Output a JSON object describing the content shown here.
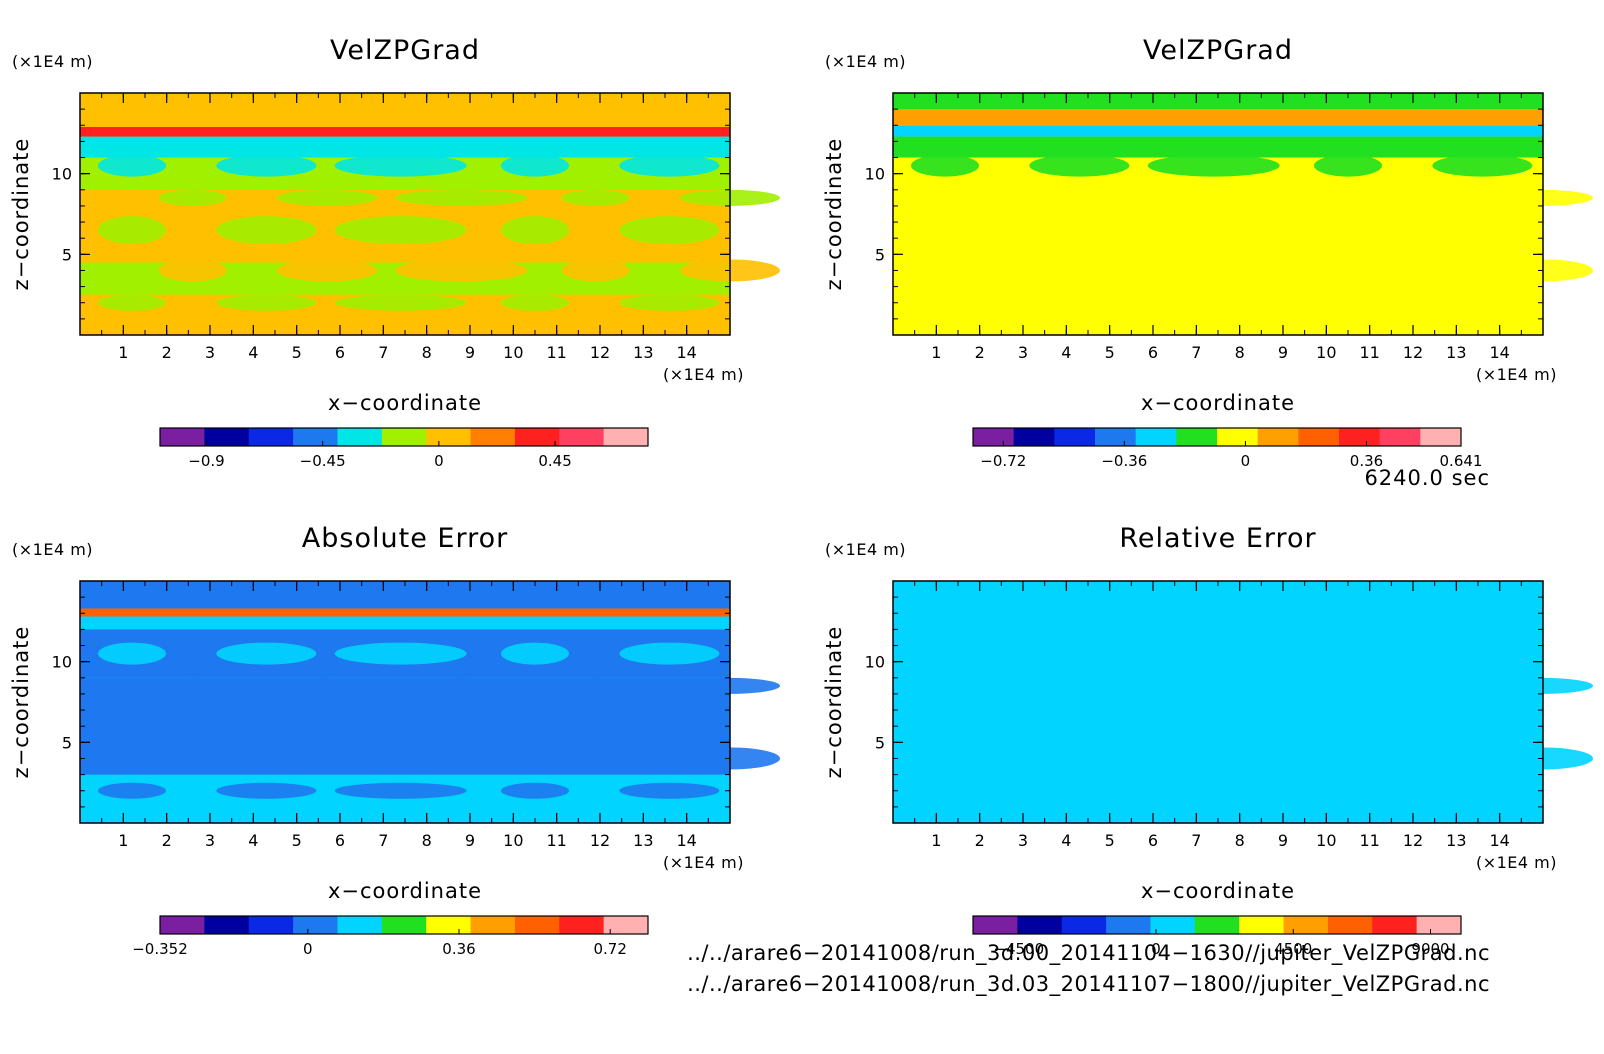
{
  "chart_data": [
    {
      "type": "heatmap",
      "title": "VelZPGrad",
      "xlabel": "x−coordinate",
      "ylabel": "z−coordinate",
      "x_unit": "(×1E4 m)",
      "y_unit": "(×1E4 m)",
      "xlim": [
        0,
        15
      ],
      "ylim": [
        0,
        15
      ],
      "x_ticks": [
        "1",
        "2",
        "3",
        "4",
        "5",
        "6",
        "7",
        "8",
        "9",
        "10",
        "11",
        "12",
        "13",
        "14"
      ],
      "y_ticks": [
        "5",
        "10"
      ],
      "colorbar": {
        "range": [
          -1.08,
          0.81
        ],
        "tick_values": [
          -0.9,
          -0.45,
          0,
          0.45
        ],
        "tick_labels": [
          "−0.9",
          "−0.45",
          "0",
          "0.45"
        ],
        "colors": [
          "#7a1fa0",
          "#0000a0",
          "#0a28e6",
          "#1e78f0",
          "#00e6e6",
          "#a0f000",
          "#ffc000",
          "#ff8000",
          "#ff2020",
          "#ff4060",
          "#ffb0b0"
        ]
      },
      "bands": [
        {
          "z_from": 0,
          "z_to": 2.5,
          "value": 0.05
        },
        {
          "z_from": 2.5,
          "z_to": 4.5,
          "value": -0.05
        },
        {
          "z_from": 4.5,
          "z_to": 9,
          "value": -0.02
        },
        {
          "z_from": 9,
          "z_to": 11,
          "value": -0.07
        },
        {
          "z_from": 11,
          "z_to": 12.3,
          "value": -0.25
        },
        {
          "z_from": 12.3,
          "z_to": 12.9,
          "value": 0.3
        },
        {
          "z_from": 12.9,
          "z_to": 13.5,
          "value": 0.1
        },
        {
          "z_from": 13.5,
          "z_to": 15,
          "value": -0.04
        }
      ]
    },
    {
      "type": "heatmap",
      "title": "VelZPGrad",
      "xlabel": "x−coordinate",
      "ylabel": "z−coordinate",
      "x_unit": "(×1E4 m)",
      "y_unit": "(×1E4 m)",
      "xlim": [
        0,
        15
      ],
      "ylim": [
        0,
        15
      ],
      "x_ticks": [
        "1",
        "2",
        "3",
        "4",
        "5",
        "6",
        "7",
        "8",
        "9",
        "10",
        "11",
        "12",
        "13",
        "14"
      ],
      "y_ticks": [
        "5",
        "10"
      ],
      "colorbar": {
        "range": [
          -0.81,
          0.641
        ],
        "tick_values": [
          -0.72,
          -0.36,
          0,
          0.36,
          0.641
        ],
        "tick_labels": [
          "−0.72",
          "−0.36",
          "0",
          "0.36",
          "0.641"
        ],
        "colors": [
          "#7a1fa0",
          "#0000a0",
          "#0a28e6",
          "#1e78f0",
          "#00d4ff",
          "#20e020",
          "#ffff00",
          "#ffa000",
          "#ff6000",
          "#ff2020",
          "#ff4060",
          "#ffb0b0"
        ]
      },
      "bands": [
        {
          "z_from": 0,
          "z_to": 2.5,
          "value": 0.03
        },
        {
          "z_from": 2.5,
          "z_to": 4.5,
          "value": -0.03
        },
        {
          "z_from": 4.5,
          "z_to": 9,
          "value": 0.02
        },
        {
          "z_from": 9,
          "z_to": 11,
          "value": -0.05
        },
        {
          "z_from": 11,
          "z_to": 12.3,
          "value": -0.2
        },
        {
          "z_from": 12.3,
          "z_to": 13,
          "value": -0.28
        },
        {
          "z_from": 13,
          "z_to": 14,
          "value": 0.12
        },
        {
          "z_from": 14,
          "z_to": 15,
          "value": -0.1
        }
      ]
    },
    {
      "type": "heatmap",
      "title": "Absolute Error",
      "xlabel": "x−coordinate",
      "ylabel": "z−coordinate",
      "x_unit": "(×1E4 m)",
      "y_unit": "(×1E4 m)",
      "xlim": [
        0,
        15
      ],
      "ylim": [
        0,
        15
      ],
      "x_ticks": [
        "1",
        "2",
        "3",
        "4",
        "5",
        "6",
        "7",
        "8",
        "9",
        "10",
        "11",
        "12",
        "13",
        "14"
      ],
      "y_ticks": [
        "5",
        "10"
      ],
      "colorbar": {
        "range": [
          -0.352,
          0.81
        ],
        "tick_values": [
          -0.352,
          0,
          0.36,
          0.72
        ],
        "tick_labels": [
          "−0.352",
          "0",
          "0.36",
          "0.72"
        ],
        "colors": [
          "#7a1fa0",
          "#0000a0",
          "#0a28e6",
          "#1e78f0",
          "#00d4ff",
          "#20e020",
          "#ffff00",
          "#ffa000",
          "#ff6000",
          "#ff2020",
          "#ffb0b0"
        ]
      },
      "bands": [
        {
          "z_from": 0,
          "z_to": 3,
          "value": 0.1
        },
        {
          "z_from": 3,
          "z_to": 9,
          "value": 0.05
        },
        {
          "z_from": 9,
          "z_to": 12,
          "value": 0.02
        },
        {
          "z_from": 12,
          "z_to": 12.8,
          "value": 0.1
        },
        {
          "z_from": 12.8,
          "z_to": 13.3,
          "value": 0.5
        },
        {
          "z_from": 13.3,
          "z_to": 15,
          "value": 0.03
        }
      ]
    },
    {
      "type": "heatmap",
      "title": "Relative Error",
      "xlabel": "x−coordinate",
      "ylabel": "z−coordinate",
      "x_unit": "(×1E4 m)",
      "y_unit": "(×1E4 m)",
      "xlim": [
        0,
        15
      ],
      "ylim": [
        0,
        15
      ],
      "x_ticks": [
        "1",
        "2",
        "3",
        "4",
        "5",
        "6",
        "7",
        "8",
        "9",
        "10",
        "11",
        "12",
        "13",
        "14"
      ],
      "y_ticks": [
        "5",
        "10"
      ],
      "colorbar": {
        "range": [
          -6000,
          10000
        ],
        "tick_values": [
          -4500,
          0,
          4500,
          9000
        ],
        "tick_labels": [
          "−4500",
          "0",
          "4500",
          "9000"
        ],
        "colors": [
          "#7a1fa0",
          "#0000a0",
          "#0a28e6",
          "#1e78f0",
          "#00d4ff",
          "#20e020",
          "#ffff00",
          "#ffa000",
          "#ff6000",
          "#ff2020",
          "#ffb0b0"
        ]
      },
      "bands": [
        {
          "z_from": 0,
          "z_to": 5,
          "value": 1000
        },
        {
          "z_from": 5,
          "z_to": 12,
          "value": 700
        },
        {
          "z_from": 12,
          "z_to": 15,
          "value": 900
        }
      ]
    }
  ],
  "time_label": "6240.0 sec",
  "files": [
    "../../arare6−20141008/run_3d.00_20141104−1630//jupiter_VelZPGrad.nc",
    "../../arare6−20141008/run_3d.03_20141107−1800//jupiter_VelZPGrad.nc"
  ]
}
